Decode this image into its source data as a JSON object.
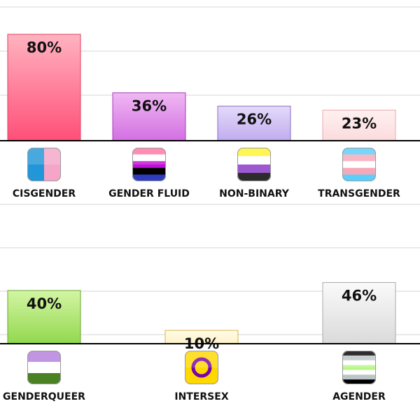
{
  "chart_data": [
    {
      "type": "bar",
      "categories": [
        "CISGENDER",
        "GENDER FLUID",
        "NON-BINARY",
        "TRANSGENDER"
      ],
      "values": [
        80,
        36,
        26,
        23
      ],
      "value_labels": [
        "80%",
        "36%",
        "26%",
        "23%"
      ],
      "icons": [
        "cisgender-flag-icon",
        "genderfluid-flag-icon",
        "nonbinary-flag-icon",
        "transgender-flag-icon"
      ],
      "bar_colors": [
        [
          "#ffb3c0",
          "#ff4f78",
          "#e0405f"
        ],
        [
          "#f0b8f3",
          "#d26fe2",
          "#a83ab8"
        ],
        [
          "#e4dafa",
          "#c0acee",
          "#8a6fc8"
        ],
        [
          "#fff0f0",
          "#fbdbdd",
          "#e8a9b0"
        ]
      ],
      "ylim": [
        0,
        100
      ],
      "grid": true
    },
    {
      "type": "bar",
      "categories": [
        "GENDERQUEER",
        "INTERSEX",
        "AGENDER"
      ],
      "values": [
        40,
        10,
        46
      ],
      "value_labels": [
        "40%",
        "10%",
        "46%"
      ],
      "icons": [
        "genderqueer-flag-icon",
        "intersex-flag-icon",
        "agender-flag-icon"
      ],
      "bar_colors": [
        [
          "#d3f5a4",
          "#92d84e",
          "#6aa530"
        ],
        [
          "#fffbe8",
          "#fff2c8",
          "#d4b63c"
        ],
        [
          "#fafafa",
          "#dadada",
          "#a9a9a9"
        ]
      ],
      "ylim": [
        0,
        100
      ],
      "grid": true
    }
  ]
}
